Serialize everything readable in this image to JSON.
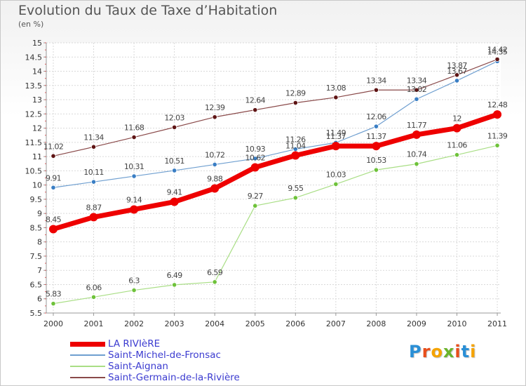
{
  "title": "Evolution du Taux de Taxe d’Habitation",
  "unit_label": "(en %)",
  "logo": {
    "text": "Proxiti",
    "letter_colors": [
      "#2a8fd6",
      "#e84e1b",
      "#f5a300",
      "#6ab42d",
      "#e84e1b",
      "#2a8fd6",
      "#f5a300"
    ]
  },
  "chart_data": {
    "type": "line",
    "categories": [
      "2000",
      "2001",
      "2002",
      "2003",
      "2004",
      "2005",
      "2006",
      "2007",
      "2008",
      "2009",
      "2010",
      "2011"
    ],
    "y_ticks": [
      "5.5",
      "6",
      "6.5",
      "7",
      "7.5",
      "8",
      "8.5",
      "9",
      "9.5",
      "10",
      "10.5",
      "11",
      "11.5",
      "12",
      "12.5",
      "13",
      "13.5",
      "14",
      "14.5",
      "15"
    ],
    "ylim": [
      5.5,
      15
    ],
    "grid": true,
    "legend_position": "bottom-left",
    "series": [
      {
        "name": "LA RIVIèRE",
        "color": "#ee0000",
        "width": 7,
        "marker": 6,
        "values": [
          8.45,
          8.87,
          9.14,
          9.41,
          9.88,
          10.62,
          11.04,
          11.37,
          11.37,
          11.77,
          12,
          12.48
        ],
        "labels": [
          "8.45",
          "8.87",
          "9.14",
          "9.41",
          "9.88",
          "10.62",
          "11.04",
          "11.37",
          "11.37",
          "11.77",
          "12",
          "12.48"
        ]
      },
      {
        "name": "Saint-Michel-de-Fronsac",
        "color": "#6f9fd0",
        "dot": "#3a7ec4",
        "width": 1.2,
        "marker": 3.2,
        "values": [
          9.91,
          10.11,
          10.31,
          10.51,
          10.72,
          10.93,
          11.26,
          11.49,
          12.06,
          13.02,
          13.67,
          14.35
        ],
        "labels": [
          "9.91",
          "10.11",
          "10.31",
          "10.51",
          "10.72",
          "10.93",
          "11.26",
          "11.49",
          "12.06",
          "13.02",
          "13.67",
          "14.35"
        ]
      },
      {
        "name": "Saint-Aignan",
        "color": "#a9de85",
        "dot": "#6ec23a",
        "width": 1.2,
        "marker": 3.2,
        "values": [
          5.83,
          6.06,
          6.3,
          6.49,
          6.59,
          9.27,
          9.55,
          10.03,
          10.53,
          10.74,
          11.06,
          11.39
        ],
        "labels": [
          "5.83",
          "6.06",
          "6.3",
          "6.49",
          "6.59",
          "9.27",
          "9.55",
          "10.03",
          "10.53",
          "10.74",
          "11.06",
          "11.39"
        ]
      },
      {
        "name": "Saint-Germain-de-la-Rivière",
        "color": "#8a4a4a",
        "dot": "#5e1414",
        "width": 1.2,
        "marker": 3.2,
        "values": [
          11.02,
          11.34,
          11.68,
          12.03,
          12.39,
          12.64,
          12.89,
          13.08,
          13.34,
          13.34,
          13.87,
          14.42
        ],
        "labels": [
          "11.02",
          "11.34",
          "11.68",
          "12.03",
          "12.39",
          "12.64",
          "12.89",
          "13.08",
          "13.34",
          "13.34",
          "13.87",
          "14.42"
        ]
      }
    ]
  }
}
